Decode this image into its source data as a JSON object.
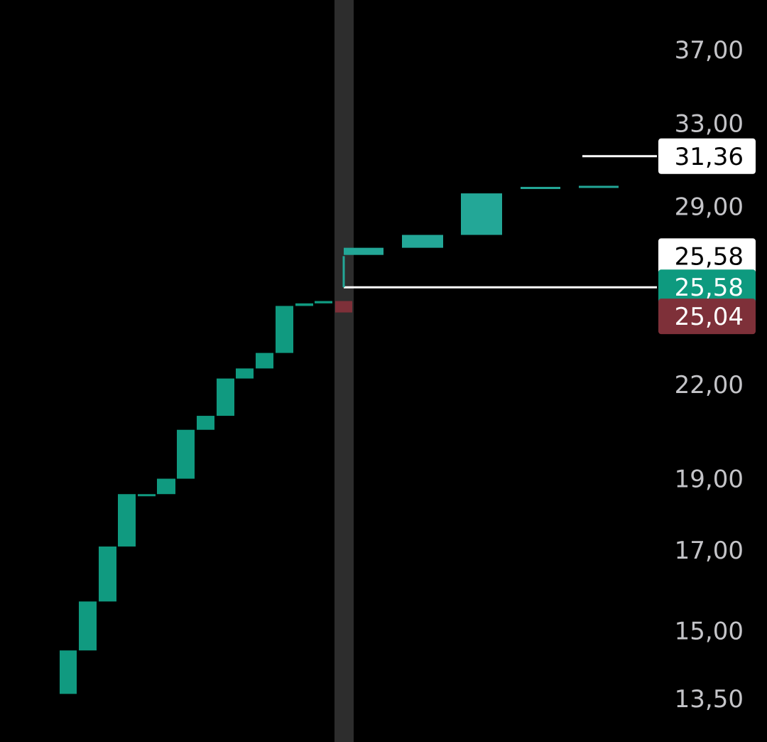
{
  "chart_data": {
    "type": "bar",
    "subtype": "candlestick",
    "scale": "log",
    "ylim": [
      13.5,
      37
    ],
    "y_ticks": [
      "37,00",
      "33,00",
      "29,00",
      "22,00",
      "19,00",
      "17,00",
      "15,00",
      "13,50"
    ],
    "y_tick_values": [
      37.0,
      33.0,
      29.0,
      22.0,
      19.0,
      17.0,
      15.0,
      13.5
    ],
    "colors": {
      "background": "#000000",
      "up": "#109a80",
      "up_light": "#23a797",
      "down": "#7e3039",
      "cursor": "#2d2d2d",
      "tick_text": "#c4c4c8",
      "badge_white": "#ffffff",
      "badge_green": "#0e9a7f",
      "badge_red": "#7e3039"
    },
    "candles": [
      {
        "open": 13.6,
        "close": 14.55,
        "dir": "up"
      },
      {
        "open": 14.55,
        "close": 15.7,
        "dir": "up"
      },
      {
        "open": 15.7,
        "close": 17.1,
        "dir": "up"
      },
      {
        "open": 17.1,
        "close": 18.55,
        "dir": "up"
      },
      {
        "open": 18.5,
        "close": 18.55,
        "dir": "up"
      },
      {
        "open": 18.55,
        "close": 19.0,
        "dir": "up"
      },
      {
        "open": 19.0,
        "close": 20.5,
        "dir": "up"
      },
      {
        "open": 20.5,
        "close": 20.95,
        "dir": "up"
      },
      {
        "open": 20.95,
        "close": 22.2,
        "dir": "up"
      },
      {
        "open": 22.2,
        "close": 22.55,
        "dir": "up"
      },
      {
        "open": 22.55,
        "close": 23.1,
        "dir": "up"
      },
      {
        "open": 23.1,
        "close": 24.85,
        "dir": "up"
      },
      {
        "open": 24.85,
        "close": 24.95,
        "dir": "up"
      },
      {
        "open": 24.95,
        "close": 25.04,
        "dir": "up"
      },
      {
        "open": 25.04,
        "close": 24.6,
        "dir": "down",
        "highlight": true
      },
      {
        "open": 26.9,
        "close": 27.2,
        "dir": "up",
        "projected": true
      },
      {
        "open": 27.2,
        "close": 27.75,
        "dir": "up",
        "projected": true
      },
      {
        "open": 27.75,
        "close": 29.6,
        "dir": "up",
        "projected": true
      },
      {
        "open": 29.8,
        "close": 29.9,
        "dir": "up",
        "projected": true
      },
      {
        "open": 29.9,
        "close": 29.95,
        "dir": "up",
        "projected": true
      }
    ],
    "price_lines": [
      {
        "label": "31,36",
        "value": 31.36,
        "style": "white"
      },
      {
        "label": "25,58",
        "value": 26.85,
        "style": "white"
      },
      {
        "label": "25,58",
        "value": 25.58,
        "style": "green"
      },
      {
        "label": "25,04",
        "value": 24.45,
        "style": "red"
      }
    ]
  }
}
